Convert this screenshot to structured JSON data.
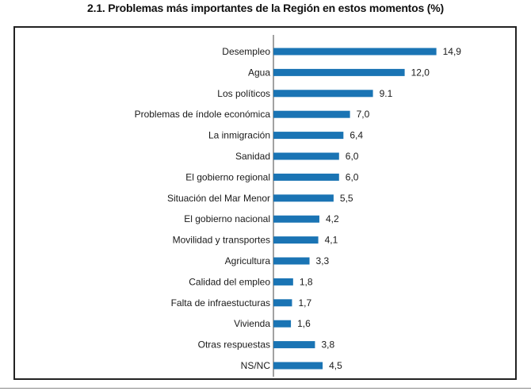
{
  "page": {
    "title": "2.1. Problemas más importantes de la Región en estos momentos (%)"
  },
  "colors": {
    "bar": "#1a74b4",
    "axis": "#444444",
    "frame": "#222222",
    "text": "#1a1a1a"
  },
  "chart_data": {
    "type": "bar",
    "orientation": "horizontal",
    "title": "2.1. Problemas más importantes de la Región en estos momentos (%)",
    "categories": [
      "Desempleo",
      "Agua",
      "Los políticos",
      "Problemas de índole económica",
      "La inmigración",
      "Sanidad",
      "El gobierno regional",
      "Situación del Mar Menor",
      "El gobierno nacional",
      "Movilidad y transportes",
      "Agricultura",
      "Calidad del empleo",
      "Falta de infraestucturas",
      "Vivienda",
      "Otras respuestas",
      "NS/NC"
    ],
    "values": [
      14.9,
      12.0,
      9.1,
      7.0,
      6.4,
      6.0,
      6.0,
      5.5,
      4.2,
      4.1,
      3.3,
      1.8,
      1.7,
      1.6,
      3.8,
      4.5
    ],
    "value_labels": [
      "14,9",
      "12,0",
      "9.1",
      "7,0",
      "6,4",
      "6,0",
      "6,0",
      "5,5",
      "4,2",
      "4,1",
      "3,3",
      "1,8",
      "1,7",
      "1,6",
      "3,8",
      "4,5"
    ],
    "xlim": [
      0,
      15
    ],
    "grid": false,
    "legend": "none"
  }
}
